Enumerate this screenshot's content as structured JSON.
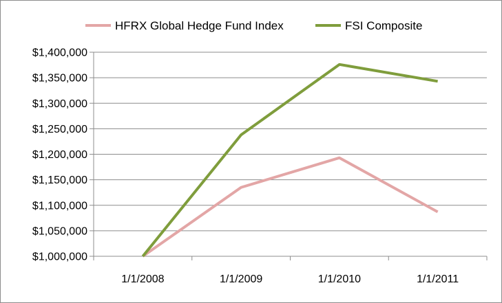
{
  "chart_data": {
    "type": "line",
    "title": "",
    "xlabel": "",
    "ylabel": "",
    "categories": [
      "1/1/2008",
      "1/1/2009",
      "1/1/2010",
      "1/1/2011"
    ],
    "ylim": [
      1000000,
      1400000
    ],
    "yticks": [
      1000000,
      1050000,
      1100000,
      1150000,
      1200000,
      1250000,
      1300000,
      1350000,
      1400000
    ],
    "ytick_labels": [
      "$1,000,000",
      "$1,050,000",
      "$1,100,000",
      "$1,150,000",
      "$1,200,000",
      "$1,250,000",
      "$1,300,000",
      "$1,350,000",
      "$1,400,000"
    ],
    "grid": "horizontal",
    "legend_position": "top",
    "series": [
      {
        "name": "HFRX Global Hedge Fund Index",
        "color": "#e3a6a6",
        "values": [
          1000000,
          1135000,
          1193000,
          1087000
        ]
      },
      {
        "name": "FSI Composite",
        "color": "#7f9d3c",
        "values": [
          1000000,
          1238000,
          1376000,
          1343000
        ]
      }
    ]
  }
}
